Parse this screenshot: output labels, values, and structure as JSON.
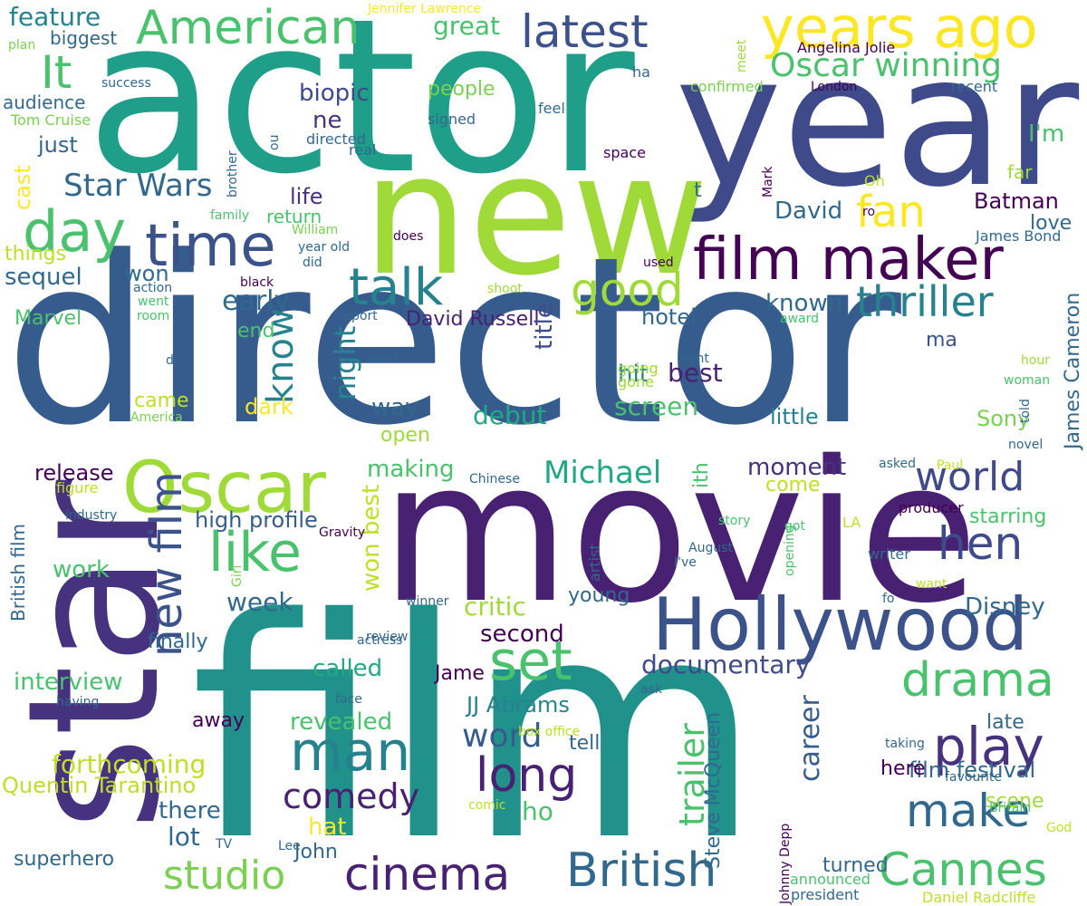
{
  "words": [
    {
      "text": "actor",
      "color": "#1f9e89"
    },
    {
      "text": "year",
      "color": "#3e4a89"
    },
    {
      "text": "new",
      "color": "#a0da39"
    },
    {
      "text": "years ago",
      "color": "#fde725"
    },
    {
      "text": "director",
      "color": "#365c8d"
    },
    {
      "text": "star",
      "color": "#46327e"
    },
    {
      "text": "movie",
      "color": "#482173"
    },
    {
      "text": "film",
      "color": "#21918c"
    },
    {
      "text": "Oscar",
      "color": "#a0da39"
    },
    {
      "text": "Hollywood",
      "color": "#3b528b"
    },
    {
      "text": "time",
      "color": "#3b528b"
    },
    {
      "text": "day",
      "color": "#4ac16d"
    },
    {
      "text": "It",
      "color": "#4ac16d"
    },
    {
      "text": "American",
      "color": "#4ac16d"
    },
    {
      "text": "latest",
      "color": "#3b528b"
    },
    {
      "text": "film maker",
      "color": "#440154"
    },
    {
      "text": "talk",
      "color": "#26828e"
    },
    {
      "text": "good",
      "color": "#a0da39"
    },
    {
      "text": "thriller",
      "color": "#26828e"
    },
    {
      "text": "fan",
      "color": "#fde725"
    },
    {
      "text": "Oscar winning",
      "color": "#4ac16d"
    },
    {
      "text": "world",
      "color": "#3e4a89"
    },
    {
      "text": "hen",
      "color": "#3e4a89"
    },
    {
      "text": "like",
      "color": "#4ac16d"
    },
    {
      "text": "set",
      "color": "#4ac16d"
    },
    {
      "text": "man",
      "color": "#26828e"
    },
    {
      "text": "long",
      "color": "#482173"
    },
    {
      "text": "play",
      "color": "#46327e"
    },
    {
      "text": "drama",
      "color": "#4ac16d"
    },
    {
      "text": "make",
      "color": "#31688e"
    },
    {
      "text": "Cannes",
      "color": "#4ac16d"
    },
    {
      "text": "British",
      "color": "#31688e"
    },
    {
      "text": "cinema",
      "color": "#482173"
    },
    {
      "text": "studio",
      "color": "#7ad151"
    },
    {
      "text": "new film",
      "color": "#3b528b"
    },
    {
      "text": "feature",
      "color": "#26828e"
    },
    {
      "text": "great",
      "color": "#4ac16d"
    },
    {
      "text": "biopic",
      "color": "#3e4a89"
    },
    {
      "text": "ne",
      "color": "#46327e"
    },
    {
      "text": "people",
      "color": "#7ad151"
    },
    {
      "text": "I'm",
      "color": "#4ac16d"
    },
    {
      "text": "just",
      "color": "#31688e"
    },
    {
      "text": "Star Wars",
      "color": "#31688e"
    },
    {
      "text": "life",
      "color": "#46327e"
    },
    {
      "text": "David",
      "color": "#31688e"
    },
    {
      "text": "Batman",
      "color": "#440154"
    },
    {
      "text": "early",
      "color": "#31688e"
    },
    {
      "text": "known",
      "color": "#31688e"
    },
    {
      "text": "sequel",
      "color": "#31688e"
    },
    {
      "text": "won",
      "color": "#31688e"
    },
    {
      "text": "know",
      "color": "#26828e"
    },
    {
      "text": "night",
      "color": "#26828e"
    },
    {
      "text": "hotel",
      "color": "#31688e"
    },
    {
      "text": "ma",
      "color": "#3b528b"
    },
    {
      "text": "hit",
      "color": "#26828e"
    },
    {
      "text": "best",
      "color": "#482173"
    },
    {
      "text": "David Russell",
      "color": "#482173"
    },
    {
      "text": "way",
      "color": "#31688e"
    },
    {
      "text": "screen",
      "color": "#4ac16d"
    },
    {
      "text": "little",
      "color": "#26828e"
    },
    {
      "text": "debut",
      "color": "#22a884"
    },
    {
      "text": "Sony",
      "color": "#7ad151"
    },
    {
      "text": "dark",
      "color": "#fde725"
    },
    {
      "text": "came",
      "color": "#bddf26"
    },
    {
      "text": "title",
      "color": "#3e4a89"
    },
    {
      "text": "Michael",
      "color": "#22a884"
    },
    {
      "text": "making",
      "color": "#4ac16d"
    },
    {
      "text": "moment",
      "color": "#46327e"
    },
    {
      "text": "come",
      "color": "#bddf26"
    },
    {
      "text": "release",
      "color": "#440154"
    },
    {
      "text": "open",
      "color": "#a0da39"
    },
    {
      "text": "high profile",
      "color": "#365c8d"
    },
    {
      "text": "won best",
      "color": "#bddf26"
    },
    {
      "text": "work",
      "color": "#4ac16d"
    },
    {
      "text": "week",
      "color": "#31688e"
    },
    {
      "text": "critic",
      "color": "#a0da39"
    },
    {
      "text": "Disney",
      "color": "#31688e"
    },
    {
      "text": "starring",
      "color": "#4ac16d"
    },
    {
      "text": "young",
      "color": "#31688e"
    },
    {
      "text": "second",
      "color": "#440154"
    },
    {
      "text": "documentary",
      "color": "#3e4a89"
    },
    {
      "text": "finally",
      "color": "#31688e"
    },
    {
      "text": "called",
      "color": "#22a884"
    },
    {
      "text": "interview",
      "color": "#4ac16d"
    },
    {
      "text": "Jame",
      "color": "#440154"
    },
    {
      "text": "JJ Abrams",
      "color": "#26828e"
    },
    {
      "text": "revealed",
      "color": "#4ac16d"
    },
    {
      "text": "word",
      "color": "#365c8d"
    },
    {
      "text": "forthcoming",
      "color": "#bddf26"
    },
    {
      "text": "comedy",
      "color": "#482173"
    },
    {
      "text": "Quentin Tarantino",
      "color": "#bddf26"
    },
    {
      "text": "there",
      "color": "#31688e"
    },
    {
      "text": "lot",
      "color": "#31688e"
    },
    {
      "text": "hat",
      "color": "#fde725"
    },
    {
      "text": "ho",
      "color": "#4ac16d"
    },
    {
      "text": "John",
      "color": "#31688e"
    },
    {
      "text": "superhero",
      "color": "#31688e"
    },
    {
      "text": "tell",
      "color": "#31688e"
    },
    {
      "text": "trailer",
      "color": "#4ac16d"
    },
    {
      "text": "career",
      "color": "#365c8d"
    },
    {
      "text": "film festival",
      "color": "#31688e"
    },
    {
      "text": "turned",
      "color": "#31688e"
    },
    {
      "text": "here",
      "color": "#440154"
    },
    {
      "text": "late",
      "color": "#31688e"
    },
    {
      "text": "scene",
      "color": "#a0da39"
    },
    {
      "text": "away",
      "color": "#440154"
    },
    {
      "text": "Steve McQueen",
      "color": "#31688e"
    },
    {
      "text": "James Cameron",
      "color": "#31688e"
    },
    {
      "text": "return",
      "color": "#4ac16d"
    },
    {
      "text": "end",
      "color": "#4ac16d"
    },
    {
      "text": "cast",
      "color": "#fde725"
    },
    {
      "text": "things",
      "color": "#bddf26"
    },
    {
      "text": "audience",
      "color": "#31688e"
    },
    {
      "text": "biggest",
      "color": "#31688e"
    },
    {
      "text": "Marvel",
      "color": "#4ac16d"
    },
    {
      "text": "British film",
      "color": "#31688e"
    },
    {
      "text": "Tom Cruise",
      "color": "#7ad151"
    },
    {
      "text": "Jennifer Lawrence",
      "color": "#fde725"
    },
    {
      "text": "plan",
      "color": "#7ad151"
    },
    {
      "text": "success",
      "color": "#31688e"
    },
    {
      "text": "brother",
      "color": "#31688e"
    },
    {
      "text": "ou",
      "color": "#31688e"
    },
    {
      "text": "directed",
      "color": "#31688e"
    },
    {
      "text": "real",
      "color": "#31688e"
    },
    {
      "text": "signed",
      "color": "#31688e"
    },
    {
      "text": "feel",
      "color": "#31688e"
    },
    {
      "text": "ha",
      "color": "#31688e"
    },
    {
      "text": "confirmed",
      "color": "#7ad151"
    },
    {
      "text": "meet",
      "color": "#a0da39"
    },
    {
      "text": "Angelina Jolie",
      "color": "#440154"
    },
    {
      "text": "London",
      "color": "#440154"
    },
    {
      "text": "recent",
      "color": "#31688e"
    },
    {
      "text": "space",
      "color": "#440154"
    },
    {
      "text": "Mark",
      "color": "#440154"
    },
    {
      "text": "far",
      "color": "#a0da39"
    },
    {
      "text": "Oh",
      "color": "#bddf26"
    },
    {
      "text": "ro",
      "color": "#440154"
    },
    {
      "text": "James Bond",
      "color": "#31688e"
    },
    {
      "text": "love",
      "color": "#31688e"
    },
    {
      "text": "t",
      "color": "#31688e"
    },
    {
      "text": "family",
      "color": "#4ac16d"
    },
    {
      "text": "William",
      "color": "#7ad151"
    },
    {
      "text": "year old",
      "color": "#31688e"
    },
    {
      "text": "did",
      "color": "#31688e"
    },
    {
      "text": "does",
      "color": "#440154"
    },
    {
      "text": "used",
      "color": "#440154"
    },
    {
      "text": "black",
      "color": "#440154"
    },
    {
      "text": "action",
      "color": "#31688e"
    },
    {
      "text": "went",
      "color": "#4ac16d"
    },
    {
      "text": "room",
      "color": "#4ac16d"
    },
    {
      "text": "shoot",
      "color": "#a0da39"
    },
    {
      "text": "report",
      "color": "#31688e"
    },
    {
      "text": "award",
      "color": "#4ac16d"
    },
    {
      "text": "di",
      "color": "#31688e"
    },
    {
      "text": "seen",
      "color": "#31688e"
    },
    {
      "text": "America",
      "color": "#7ad151"
    },
    {
      "text": "going",
      "color": "#a0da39"
    },
    {
      "text": "gone",
      "color": "#a0da39"
    },
    {
      "text": "right",
      "color": "#31688e"
    },
    {
      "text": "hour",
      "color": "#a0da39"
    },
    {
      "text": "woman",
      "color": "#4ac16d"
    },
    {
      "text": "told",
      "color": "#31688e"
    },
    {
      "text": "ith",
      "color": "#4ac16d"
    },
    {
      "text": "Chinese",
      "color": "#31688e"
    },
    {
      "text": "asked",
      "color": "#31688e"
    },
    {
      "text": "novel",
      "color": "#31688e"
    },
    {
      "text": "Paul",
      "color": "#bddf26"
    },
    {
      "text": "figure",
      "color": "#bddf26"
    },
    {
      "text": "industry",
      "color": "#31688e"
    },
    {
      "text": "Gravity",
      "color": "#440154"
    },
    {
      "text": "artist",
      "color": "#31688e"
    },
    {
      "text": "story",
      "color": "#4ac16d"
    },
    {
      "text": "opening",
      "color": "#4ac16d"
    },
    {
      "text": "got",
      "color": "#4ac16d"
    },
    {
      "text": "LA",
      "color": "#bddf26"
    },
    {
      "text": "producer",
      "color": "#440154"
    },
    {
      "text": "August",
      "color": "#31688e"
    },
    {
      "text": "I've",
      "color": "#31688e"
    },
    {
      "text": "writer",
      "color": "#31688e"
    },
    {
      "text": "Girl",
      "color": "#7ad151"
    },
    {
      "text": "want",
      "color": "#bddf26"
    },
    {
      "text": "fo",
      "color": "#31688e"
    },
    {
      "text": "winner",
      "color": "#31688e"
    },
    {
      "text": "actress",
      "color": "#31688e"
    },
    {
      "text": "review",
      "color": "#31688e"
    },
    {
      "text": "ask",
      "color": "#31688e"
    },
    {
      "text": "face",
      "color": "#31688e"
    },
    {
      "text": "having",
      "color": "#31688e"
    },
    {
      "text": "box office",
      "color": "#bddf26"
    },
    {
      "text": "comic",
      "color": "#bddf26"
    },
    {
      "text": "favourite",
      "color": "#31688e"
    },
    {
      "text": "taking",
      "color": "#31688e"
    },
    {
      "text": "Britain",
      "color": "#4ac16d"
    },
    {
      "text": "God",
      "color": "#bddf26"
    },
    {
      "text": "Johnny Depp",
      "color": "#440154"
    },
    {
      "text": "Lee",
      "color": "#31688e"
    },
    {
      "text": "TV",
      "color": "#31688e"
    },
    {
      "text": "announced",
      "color": "#4ac16d"
    },
    {
      "text": "president",
      "color": "#31688e"
    },
    {
      "text": "Daniel Radcliffe",
      "color": "#bddf26"
    }
  ]
}
